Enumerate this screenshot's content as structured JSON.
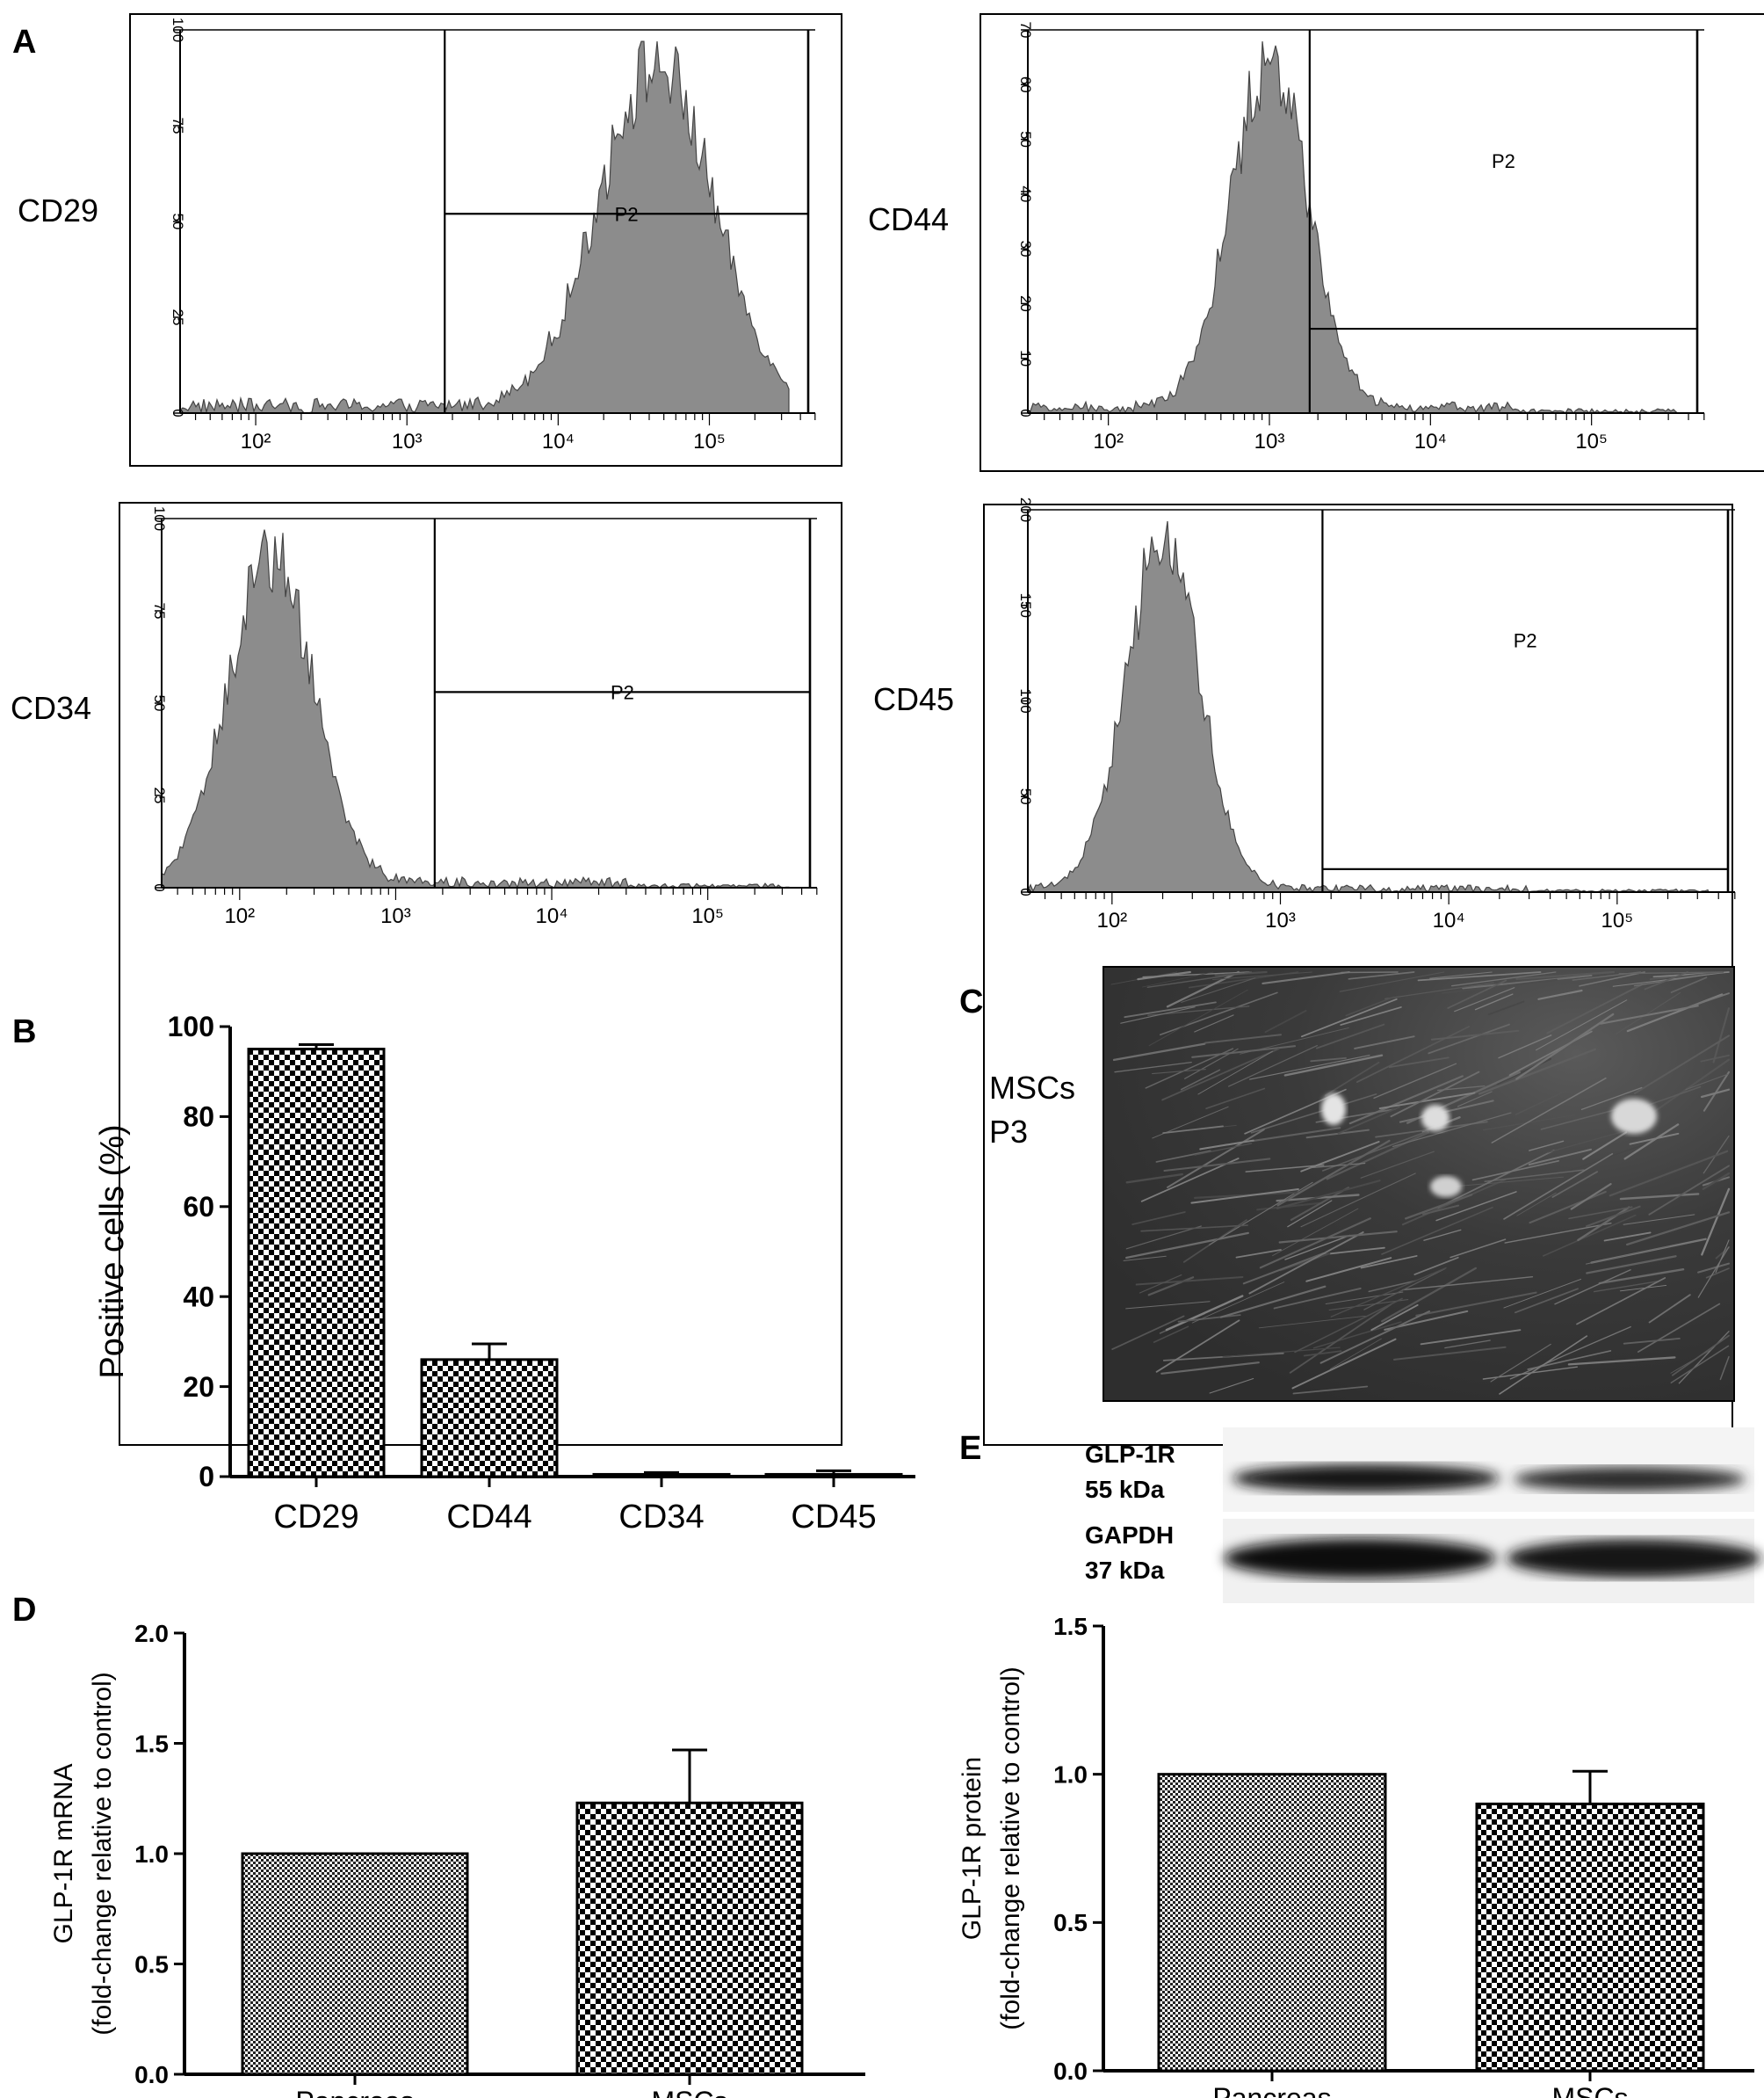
{
  "panels": {
    "A": "A",
    "B": "B",
    "C": "C",
    "D": "D",
    "E": "E"
  },
  "histograms": [
    {
      "marker": "CD29",
      "gate": "P2",
      "y_ticks": [
        "100",
        "75",
        "50",
        "25",
        "0"
      ],
      "y_max": 100,
      "x_ticks": [
        "10²",
        "10³",
        "10⁴",
        "10⁵"
      ],
      "peak_log10": 4.65,
      "spread": 0.38,
      "noise_level": 0.04,
      "gate_start_log10": 3.25,
      "gate_line_level": 0.52
    },
    {
      "marker": "CD44",
      "gate": "P2",
      "y_ticks": [
        "70",
        "60",
        "50",
        "40",
        "30",
        "20",
        "10",
        "0"
      ],
      "y_max": 70,
      "x_ticks": [
        "10²",
        "10³",
        "10⁴",
        "10⁵"
      ],
      "peak_log10": 3.0,
      "spread": 0.24,
      "noise_level": 0.03,
      "gate_start_log10": 3.25,
      "gate_line_level": 0.22
    },
    {
      "marker": "CD34",
      "gate": "P2",
      "y_ticks": [
        "100",
        "75",
        "50",
        "25",
        "0"
      ],
      "y_max": 100,
      "x_ticks": [
        "10²",
        "10³",
        "10⁴",
        "10⁵"
      ],
      "peak_log10": 2.2,
      "spread": 0.27,
      "noise_level": 0.03,
      "gate_start_log10": 3.25,
      "gate_line_level": 0.53
    },
    {
      "marker": "CD45",
      "gate": "P2",
      "y_ticks": [
        "200",
        "150",
        "100",
        "50",
        "0"
      ],
      "y_max": 200,
      "x_ticks": [
        "10²",
        "10³",
        "10⁴",
        "10⁵"
      ],
      "peak_log10": 2.3,
      "spread": 0.22,
      "noise_level": 0.02,
      "gate_start_log10": 3.25,
      "gate_line_level": 0.06
    }
  ],
  "chart_data": [
    {
      "panel": "B",
      "type": "bar",
      "categories": [
        "CD29",
        "CD44",
        "CD34",
        "CD45"
      ],
      "values": [
        95,
        26,
        0.5,
        0.5
      ],
      "errors": [
        1,
        3.5,
        0.4,
        0.8
      ],
      "ylabel": "Positive cells (%)",
      "ylim": [
        0,
        100
      ],
      "yticks": [
        "0",
        "20",
        "40",
        "60",
        "80",
        "100"
      ],
      "pattern": "checker"
    },
    {
      "panel": "D",
      "type": "bar",
      "categories": [
        "Pancreas",
        "MSCs"
      ],
      "values": [
        1.0,
        1.23
      ],
      "errors": [
        0,
        0.24
      ],
      "ylabel": [
        "GLP-1R mRNA",
        "(fold-change  relative to control)"
      ],
      "ylim": [
        0,
        2.0
      ],
      "yticks": [
        "0.0",
        "0.5",
        "1.0",
        "1.5",
        "2.0"
      ],
      "patterns": [
        "fine",
        "checker"
      ]
    },
    {
      "panel": "E",
      "type": "bar",
      "categories": [
        "Pancreas",
        "MSCs"
      ],
      "values": [
        1.0,
        0.9
      ],
      "errors": [
        0,
        0.11
      ],
      "ylabel": [
        "GLP-1R protein",
        "(fold-change  relative to control)"
      ],
      "ylim": [
        0,
        1.5
      ],
      "yticks": [
        "0.0",
        "0.5",
        "1.0",
        "1.5"
      ],
      "patterns": [
        "fine",
        "checker"
      ]
    }
  ],
  "micrograph": {
    "label_line1": "MSCs",
    "label_line2": "P3"
  },
  "western": [
    {
      "label_line1": "GLP-1R",
      "label_line2": "55 kDa"
    },
    {
      "label_line1": "GAPDH",
      "label_line2": "37 kDa"
    }
  ]
}
